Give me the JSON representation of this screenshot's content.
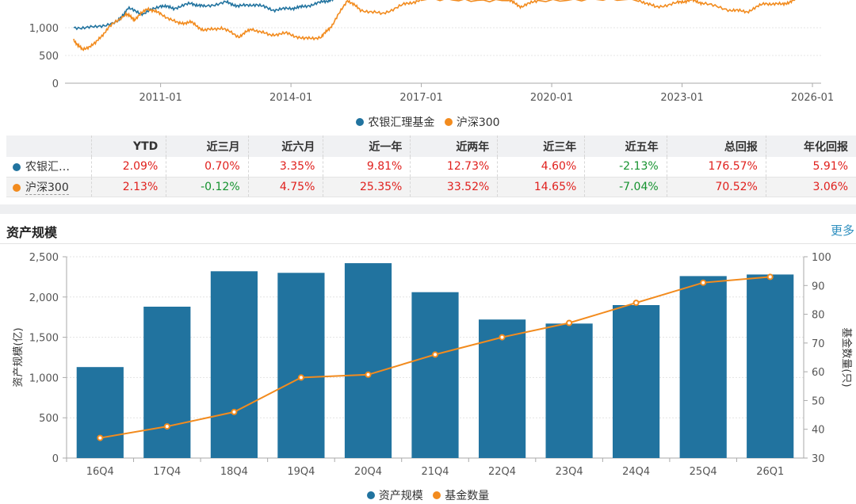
{
  "colors": {
    "blue": "#21739f",
    "orange": "#f28b1e",
    "pos": "#e0201d",
    "neg": "#15922f"
  },
  "chart_data": [
    {
      "type": "line",
      "x_ticks": [
        "2011-01",
        "2014-01",
        "2017-01",
        "2020-01",
        "2023-01",
        "2026-01"
      ],
      "y_ticks": [
        "0",
        "500",
        "1,000"
      ],
      "series": [
        {
          "name": "农银汇理基金",
          "color": "#21739f",
          "points": [
            [
              2009.0,
              1000
            ],
            [
              2009.5,
              1010
            ],
            [
              2010.0,
              1100
            ],
            [
              2010.25,
              1350
            ],
            [
              2010.6,
              1250
            ],
            [
              2011.0,
              1400
            ],
            [
              2011.3,
              1350
            ],
            [
              2011.7,
              1440
            ],
            [
              2012.0,
              1380
            ],
            [
              2012.5,
              1460
            ],
            [
              2012.8,
              1390
            ],
            [
              2013.2,
              1420
            ],
            [
              2013.6,
              1320
            ],
            [
              2014.0,
              1350
            ],
            [
              2014.3,
              1380
            ],
            [
              2014.7,
              1460
            ],
            [
              2015.0,
              1520
            ]
          ]
        },
        {
          "name": "沪深300",
          "color": "#f28b1e",
          "points": [
            [
              2009.0,
              780
            ],
            [
              2009.2,
              600
            ],
            [
              2009.5,
              720
            ],
            [
              2009.8,
              1000
            ],
            [
              2010.2,
              1250
            ],
            [
              2010.4,
              1150
            ],
            [
              2010.7,
              1350
            ],
            [
              2011.0,
              1250
            ],
            [
              2011.4,
              1080
            ],
            [
              2011.7,
              1100
            ],
            [
              2012.0,
              950
            ],
            [
              2012.4,
              1000
            ],
            [
              2012.8,
              840
            ],
            [
              2013.1,
              980
            ],
            [
              2013.5,
              870
            ],
            [
              2013.9,
              900
            ],
            [
              2014.3,
              800
            ],
            [
              2014.7,
              830
            ],
            [
              2014.95,
              1050
            ],
            [
              2015.3,
              1500
            ],
            [
              2015.6,
              1320
            ],
            [
              2016.1,
              1250
            ],
            [
              2016.6,
              1420
            ],
            [
              2017.0,
              1500
            ],
            [
              2019.0,
              1500
            ],
            [
              2019.3,
              1380
            ],
            [
              2019.7,
              1500
            ],
            [
              2022.0,
              1500
            ],
            [
              2022.4,
              1370
            ],
            [
              2022.9,
              1450
            ],
            [
              2023.2,
              1500
            ],
            [
              2023.5,
              1440
            ],
            [
              2024.1,
              1320
            ],
            [
              2024.5,
              1290
            ],
            [
              2024.9,
              1440
            ],
            [
              2025.3,
              1420
            ],
            [
              2025.6,
              1500
            ]
          ]
        }
      ],
      "xlim": [
        2008.8,
        2026.2
      ],
      "ylim": [
        0,
        1500
      ],
      "legend": "bottom"
    },
    {
      "type": "bar",
      "categories": [
        "16Q4",
        "17Q4",
        "18Q4",
        "19Q4",
        "20Q4",
        "21Q4",
        "22Q4",
        "23Q4",
        "24Q4",
        "25Q4",
        "26Q1"
      ],
      "series": [
        {
          "name": "资产规模",
          "type": "bar",
          "axis": "left",
          "values": [
            1130,
            1880,
            2320,
            2300,
            2420,
            2060,
            1720,
            1670,
            1900,
            2260,
            2280
          ]
        },
        {
          "name": "基金数量",
          "type": "line",
          "axis": "right",
          "values": [
            37,
            41,
            46,
            58,
            59,
            66,
            72,
            77,
            84,
            91,
            93
          ]
        }
      ],
      "ylabel_left": "资产规模(亿)",
      "ylabel_right": "基金数量(只)",
      "ylim_left": [
        0,
        2500
      ],
      "ylim_right": [
        30,
        100
      ],
      "y_ticks_left": [
        "0",
        "500",
        "1,000",
        "1,500",
        "2,000",
        "2,500"
      ],
      "y_ticks_right": [
        "30",
        "40",
        "50",
        "60",
        "70",
        "80",
        "90",
        "100"
      ],
      "grid": true,
      "legend": "bottom"
    }
  ],
  "legend_top": [
    {
      "label": "农银汇理基金",
      "color": "#21739f"
    },
    {
      "label": "沪深300",
      "color": "#f28b1e"
    }
  ],
  "table": {
    "headers": [
      "",
      "YTD",
      "近三月",
      "近六月",
      "近一年",
      "近两年",
      "近三年",
      "近五年",
      "总回报",
      "年化回报"
    ],
    "rows": [
      {
        "name": "农银汇…",
        "color": "#21739f",
        "values": [
          "2.09%",
          "0.70%",
          "3.35%",
          "9.81%",
          "12.73%",
          "4.60%",
          "-2.13%",
          "176.57%",
          "5.91%"
        ]
      },
      {
        "name": "沪深300",
        "color": "#f28b1e",
        "values": [
          "2.13%",
          "-0.12%",
          "4.75%",
          "25.35%",
          "33.52%",
          "14.65%",
          "-7.04%",
          "70.52%",
          "3.06%"
        ]
      }
    ]
  },
  "section": {
    "title": "资产规模",
    "more": "更多"
  },
  "legend_bottom": [
    {
      "label": "资产规模",
      "color": "#21739f"
    },
    {
      "label": "基金数量",
      "color": "#f28b1e"
    }
  ]
}
